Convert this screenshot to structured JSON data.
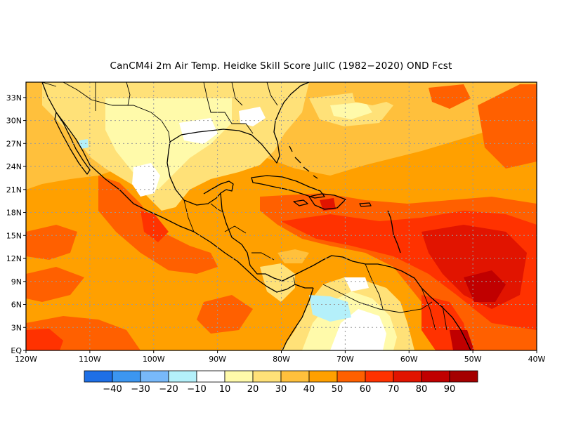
{
  "title": "CanCM4i  2m Air Temp. Heidke Skill Score JulIC (1982−2020) OND Fcst",
  "map": {
    "lon_labels": [
      "120W",
      "110W",
      "100W",
      "90W",
      "80W",
      "70W",
      "60W",
      "50W",
      "40W"
    ],
    "lat_labels": [
      "EQ",
      "3N",
      "6N",
      "9N",
      "12N",
      "15N",
      "18N",
      "21N",
      "24N",
      "27N",
      "30N",
      "33N"
    ],
    "lon_range": [
      -120,
      -40
    ],
    "lat_range": [
      0,
      35
    ],
    "gridlines": "dotted"
  },
  "colorbar": {
    "colors": [
      "#1e6fe6",
      "#3c96f0",
      "#78b9fa",
      "#b4f0fa",
      "#ffffff",
      "#fffaaa",
      "#ffe178",
      "#ffc03c",
      "#ffa000",
      "#ff6000",
      "#ff3200",
      "#e11400",
      "#c00000",
      "#a50000"
    ],
    "labels": [
      "−40",
      "−30",
      "−20",
      "−10",
      "10",
      "20",
      "30",
      "40",
      "50",
      "60",
      "70",
      "80",
      "90"
    ]
  }
}
